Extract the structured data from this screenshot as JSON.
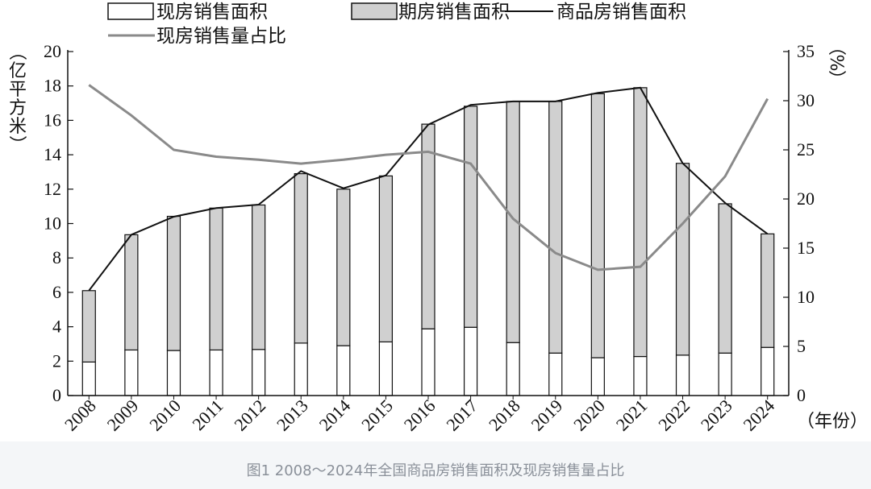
{
  "caption": "图1 2008～2024年全国商品房销售面积及现房销售量占比",
  "chart_data": {
    "type": "bar",
    "categories": [
      "2008",
      "2009",
      "2010",
      "2011",
      "2012",
      "2013",
      "2014",
      "2015",
      "2016",
      "2017",
      "2018",
      "2019",
      "2020",
      "2021",
      "2022",
      "2023",
      "2024"
    ],
    "series": [
      {
        "name": "现房销售面积",
        "type": "bar-stacked",
        "axis": "left",
        "values": [
          1.95,
          2.65,
          2.62,
          2.65,
          2.68,
          3.05,
          2.9,
          3.12,
          3.88,
          3.97,
          3.08,
          2.47,
          2.2,
          2.27,
          2.35,
          2.47,
          2.8
        ],
        "color": "#ffffff"
      },
      {
        "name": "期房销售面积",
        "type": "bar-stacked",
        "axis": "left",
        "values": [
          4.15,
          6.7,
          7.8,
          8.25,
          8.4,
          9.85,
          9.1,
          9.65,
          11.9,
          12.85,
          14.02,
          14.63,
          15.35,
          15.63,
          11.15,
          8.68,
          6.6
        ],
        "color": "#d0d0d0"
      },
      {
        "name": "商品房销售面积",
        "type": "line",
        "axis": "left",
        "values": [
          6.1,
          9.35,
          10.4,
          10.9,
          11.1,
          13.05,
          12.05,
          12.8,
          15.75,
          16.9,
          17.1,
          17.1,
          17.6,
          17.9,
          13.5,
          11.2,
          9.4
        ],
        "color": "#111111"
      },
      {
        "name": "现房销售量占比",
        "type": "line",
        "axis": "right",
        "values": [
          31.6,
          28.5,
          25.0,
          24.3,
          24.0,
          23.6,
          24.0,
          24.5,
          24.8,
          23.6,
          18.0,
          14.5,
          12.8,
          13.1,
          17.5,
          22.3,
          30.2
        ],
        "color": "#8a8a8a"
      }
    ],
    "ylabel": "（亿平方米）",
    "y2label": "（%）",
    "xlabel": "（年份）",
    "ylim": [
      0,
      20
    ],
    "yticks": [
      "0",
      "2",
      "4",
      "6",
      "8",
      "10",
      "12",
      "14",
      "16",
      "18",
      "20"
    ],
    "y2lim": [
      0,
      35
    ],
    "y2ticks": [
      "0",
      "5",
      "10",
      "15",
      "20",
      "25",
      "30",
      "35"
    ],
    "legend_position": "top"
  }
}
